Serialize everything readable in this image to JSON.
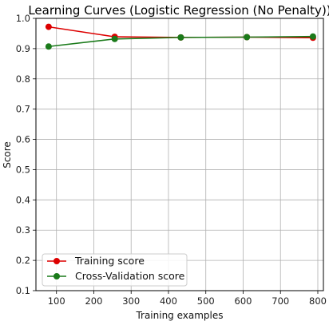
{
  "chart_data": {
    "type": "line",
    "title": "Learning Curves (Logistic Regression (No Penalty))",
    "xlabel": "Training examples",
    "ylabel": "Score",
    "xlim": [
      45,
      815
    ],
    "ylim": [
      0.1,
      1.0
    ],
    "xticks": [
      100,
      200,
      300,
      400,
      500,
      600,
      700,
      800
    ],
    "yticks": [
      0.1,
      0.2,
      0.3,
      0.4,
      0.5,
      0.6,
      0.7,
      0.8,
      0.9,
      1.0
    ],
    "xtick_labels": [
      "100",
      "200",
      "300",
      "400",
      "500",
      "600",
      "700",
      "800"
    ],
    "ytick_labels": [
      "0.1",
      "0.2",
      "0.3",
      "0.4",
      "0.5",
      "0.6",
      "0.7",
      "0.8",
      "0.9",
      "1.0"
    ],
    "grid": true,
    "legend_position": "lower-left",
    "x": [
      79,
      256,
      433,
      610,
      787
    ],
    "series": [
      {
        "name": "Training score",
        "color": "#dd0000",
        "values": [
          0.972,
          0.939,
          0.937,
          0.938,
          0.936
        ]
      },
      {
        "name": "Cross-Validation score",
        "color": "#1a7a1a",
        "values": [
          0.907,
          0.932,
          0.937,
          0.938,
          0.94
        ]
      }
    ]
  }
}
